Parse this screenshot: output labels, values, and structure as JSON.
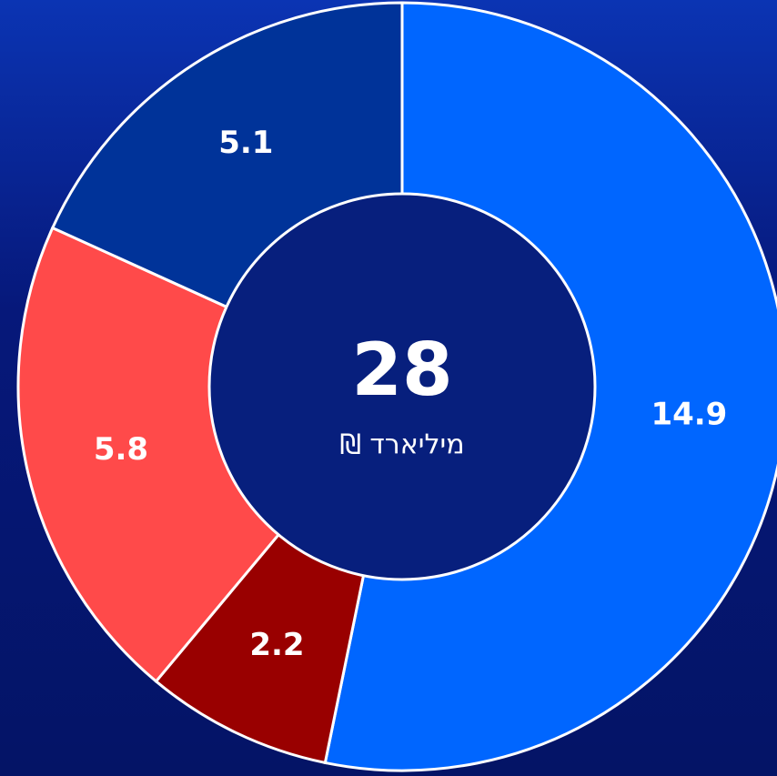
{
  "chart_data": {
    "type": "donut",
    "values": [
      14.9,
      2.2,
      5.8,
      5.1
    ],
    "colors": [
      "#0066ff",
      "#990000",
      "#ff4a4a",
      "#003399"
    ],
    "center_value": 28,
    "center_label": "מיליארד ₪"
  }
}
